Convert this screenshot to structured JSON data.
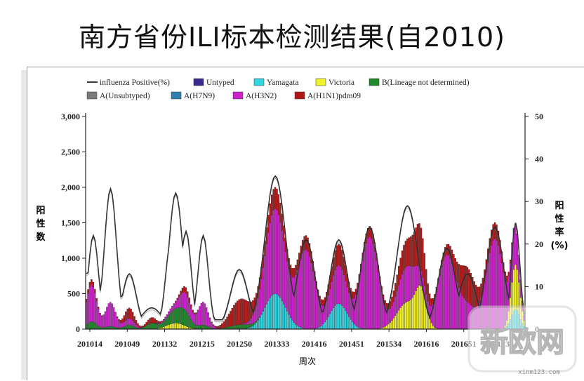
{
  "page": {
    "title": "南方省份ILI标本检测结果(自2010)"
  },
  "chart_data": {
    "type": "bar",
    "stacked": true,
    "title": "南方省份ILI标本检测结果(自2010)",
    "xlabel": "周次",
    "ylabel_left": "阳性数",
    "ylabel_right": "阳性率(%)",
    "ylim_left": [
      0,
      3000
    ],
    "ylim_right": [
      0,
      50
    ],
    "yticks_left": [
      "0",
      "500",
      "1,000",
      "1,500",
      "2,000",
      "2,500",
      "3,000"
    ],
    "yticks_right": [
      "0",
      "10",
      "20",
      "30",
      "40",
      "50"
    ],
    "x_tick_labels": [
      "201014",
      "201049",
      "201132",
      "201215",
      "201250",
      "201333",
      "201416",
      "201451",
      "201534",
      "201616",
      "201651",
      "201734"
    ],
    "legend_position": "top",
    "legend": [
      {
        "name": "influenza Positive(%)",
        "color": "#222222",
        "kind": "line"
      },
      {
        "name": "Untyped",
        "color": "#3a2a90",
        "kind": "bar"
      },
      {
        "name": "Yamagata",
        "color": "#33d6e0",
        "kind": "bar"
      },
      {
        "name": "Victoria",
        "color": "#f2f22a",
        "kind": "bar"
      },
      {
        "name": "B(Lineage not determined)",
        "color": "#1f8a2a",
        "kind": "bar"
      },
      {
        "name": "A(Unsubtyped)",
        "color": "#7a7a7a",
        "kind": "bar"
      },
      {
        "name": "A(H7N9)",
        "color": "#2f7fb0",
        "kind": "bar"
      },
      {
        "name": "A(H3N2)",
        "color": "#cc22cc",
        "kind": "bar"
      },
      {
        "name": "A(H1N1)pdm09",
        "color": "#b01818",
        "kind": "bar"
      }
    ],
    "peaks": [
      {
        "week": 3,
        "amp": 700,
        "w": 3,
        "comp": [
          {
            "k": "h3n2",
            "f": 0.75
          },
          {
            "k": "b",
            "f": 0.15
          },
          {
            "k": "h1n1",
            "f": 0.1
          }
        ]
      },
      {
        "week": 14,
        "amp": 380,
        "w": 3,
        "comp": [
          {
            "k": "h3n2",
            "f": 0.9
          },
          {
            "k": "b",
            "f": 0.1
          }
        ]
      },
      {
        "week": 25,
        "amp": 300,
        "w": 3,
        "comp": [
          {
            "k": "h1n1",
            "f": 0.5
          },
          {
            "k": "h3n2",
            "f": 0.3
          },
          {
            "k": "b",
            "f": 0.2
          }
        ]
      },
      {
        "week": 38,
        "amp": 160,
        "w": 3,
        "comp": [
          {
            "k": "h1n1",
            "f": 0.5
          },
          {
            "k": "b",
            "f": 0.5
          }
        ]
      },
      {
        "week": 52,
        "amp": 340,
        "w": 5,
        "comp": [
          {
            "k": "b",
            "f": 0.55
          },
          {
            "k": "vic",
            "f": 0.25
          },
          {
            "k": "h3n2",
            "f": 0.2
          }
        ]
      },
      {
        "week": 58,
        "amp": 420,
        "w": 3,
        "comp": [
          {
            "k": "h3n2",
            "f": 0.5
          },
          {
            "k": "b",
            "f": 0.3
          },
          {
            "k": "h1n1",
            "f": 0.2
          }
        ]
      },
      {
        "week": 68,
        "amp": 380,
        "w": 3,
        "comp": [
          {
            "k": "h3n2",
            "f": 0.85
          },
          {
            "k": "b",
            "f": 0.15
          }
        ]
      },
      {
        "week": 90,
        "amp": 420,
        "w": 6,
        "comp": [
          {
            "k": "h1n1",
            "f": 0.85
          },
          {
            "k": "b",
            "f": 0.15
          }
        ]
      },
      {
        "week": 110,
        "amp": 2000,
        "w": 6,
        "comp": [
          {
            "k": "h3n2",
            "f": 0.6
          },
          {
            "k": "h1n1",
            "f": 0.15
          },
          {
            "k": "yam",
            "f": 0.25
          }
        ]
      },
      {
        "week": 128,
        "amp": 1300,
        "w": 5,
        "comp": [
          {
            "k": "h3n2",
            "f": 0.85
          },
          {
            "k": "h1n1",
            "f": 0.15
          }
        ]
      },
      {
        "week": 147,
        "amp": 1200,
        "w": 5,
        "comp": [
          {
            "k": "h3n2",
            "f": 0.45
          },
          {
            "k": "h1n1",
            "f": 0.25
          },
          {
            "k": "yam",
            "f": 0.3
          }
        ]
      },
      {
        "week": 165,
        "amp": 1450,
        "w": 5,
        "comp": [
          {
            "k": "h3n2",
            "f": 0.9
          },
          {
            "k": "h1n1",
            "f": 0.1
          }
        ]
      },
      {
        "week": 187,
        "amp": 1250,
        "w": 6,
        "comp": [
          {
            "k": "h3n2",
            "f": 0.4
          },
          {
            "k": "h1n1",
            "f": 0.3
          },
          {
            "k": "vic",
            "f": 0.3
          }
        ]
      },
      {
        "week": 195,
        "amp": 900,
        "w": 3,
        "comp": [
          {
            "k": "vic",
            "f": 0.5
          },
          {
            "k": "h1n1",
            "f": 0.5
          }
        ]
      },
      {
        "week": 210,
        "amp": 1150,
        "w": 5,
        "comp": [
          {
            "k": "h3n2",
            "f": 0.9
          },
          {
            "k": "h1n1",
            "f": 0.1
          }
        ]
      },
      {
        "week": 222,
        "amp": 800,
        "w": 5,
        "comp": [
          {
            "k": "h1n1",
            "f": 0.6
          },
          {
            "k": "h3n2",
            "f": 0.4
          }
        ]
      },
      {
        "week": 238,
        "amp": 1500,
        "w": 5,
        "comp": [
          {
            "k": "h3n2",
            "f": 0.85
          },
          {
            "k": "h1n1",
            "f": 0.15
          }
        ]
      },
      {
        "week": 250,
        "amp": 1400,
        "w": 2.5,
        "comp": [
          {
            "k": "h3n2",
            "f": 0.35
          },
          {
            "k": "vic",
            "f": 0.45
          },
          {
            "k": "yam",
            "f": 0.2
          }
        ]
      }
    ],
    "positive_rate_peaks": [
      {
        "week": 0,
        "amp": 13,
        "w": 4
      },
      {
        "week": 4,
        "amp": 22,
        "w": 3
      },
      {
        "week": 14,
        "amp": 33,
        "w": 3.5
      },
      {
        "week": 25,
        "amp": 13,
        "w": 4
      },
      {
        "week": 38,
        "amp": 5,
        "w": 6
      },
      {
        "week": 49,
        "amp": 20,
        "w": 3
      },
      {
        "week": 52,
        "amp": 32,
        "w": 4
      },
      {
        "week": 58,
        "amp": 23,
        "w": 3
      },
      {
        "week": 68,
        "amp": 22,
        "w": 3
      },
      {
        "week": 89,
        "amp": 14,
        "w": 5
      },
      {
        "week": 110,
        "amp": 36,
        "w": 6
      },
      {
        "week": 128,
        "amp": 21,
        "w": 5
      },
      {
        "week": 147,
        "amp": 21,
        "w": 5
      },
      {
        "week": 165,
        "amp": 24,
        "w": 5
      },
      {
        "week": 187,
        "amp": 29,
        "w": 6
      },
      {
        "week": 210,
        "amp": 19,
        "w": 5
      },
      {
        "week": 222,
        "amp": 13,
        "w": 5
      },
      {
        "week": 238,
        "amp": 24,
        "w": 5
      },
      {
        "week": 250,
        "amp": 25,
        "w": 2.5
      }
    ],
    "n_weeks": 256
  },
  "watermark": {
    "text": "新欧网",
    "url_text": "xinm123.com"
  }
}
